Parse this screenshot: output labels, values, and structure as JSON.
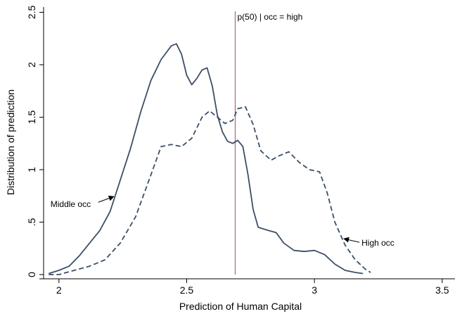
{
  "chart_data": {
    "type": "line",
    "xlabel": "Prediction of Human Capital",
    "ylabel": "Distribution of prediction",
    "xlim": [
      1.94,
      3.55
    ],
    "ylim": [
      0,
      2.55
    ],
    "xticks": [
      2,
      2.5,
      3,
      3.5
    ],
    "xtick_labels": [
      "2",
      "2.5",
      "3",
      "3.5"
    ],
    "yticks": [
      0,
      0.5,
      1,
      1.5,
      2,
      2.5
    ],
    "ytick_labels": [
      "0",
      ".5",
      "1",
      "1.5",
      "2",
      "2.5"
    ],
    "grid": false,
    "legend": "none",
    "series": [
      {
        "name": "Middle occ",
        "style": "solid",
        "color": "#3b4f66",
        "points": [
          [
            1.96,
            0.01
          ],
          [
            2.0,
            0.04
          ],
          [
            2.04,
            0.08
          ],
          [
            2.08,
            0.18
          ],
          [
            2.12,
            0.3
          ],
          [
            2.16,
            0.42
          ],
          [
            2.2,
            0.6
          ],
          [
            2.24,
            0.9
          ],
          [
            2.28,
            1.2
          ],
          [
            2.32,
            1.55
          ],
          [
            2.36,
            1.85
          ],
          [
            2.4,
            2.05
          ],
          [
            2.44,
            2.18
          ],
          [
            2.46,
            2.2
          ],
          [
            2.48,
            2.1
          ],
          [
            2.5,
            1.9
          ],
          [
            2.52,
            1.81
          ],
          [
            2.54,
            1.87
          ],
          [
            2.56,
            1.95
          ],
          [
            2.58,
            1.97
          ],
          [
            2.6,
            1.8
          ],
          [
            2.62,
            1.52
          ],
          [
            2.64,
            1.36
          ],
          [
            2.66,
            1.27
          ],
          [
            2.68,
            1.25
          ],
          [
            2.7,
            1.28
          ],
          [
            2.72,
            1.22
          ],
          [
            2.74,
            0.95
          ],
          [
            2.76,
            0.62
          ],
          [
            2.78,
            0.45
          ],
          [
            2.82,
            0.42
          ],
          [
            2.85,
            0.4
          ],
          [
            2.88,
            0.3
          ],
          [
            2.92,
            0.23
          ],
          [
            2.96,
            0.22
          ],
          [
            3.0,
            0.23
          ],
          [
            3.04,
            0.19
          ],
          [
            3.08,
            0.1
          ],
          [
            3.12,
            0.04
          ],
          [
            3.16,
            0.02
          ],
          [
            3.19,
            0.01
          ]
        ]
      },
      {
        "name": "High occ",
        "style": "dashed",
        "color": "#3b4f66",
        "points": [
          [
            1.96,
            0.0
          ],
          [
            2.0,
            0.0
          ],
          [
            2.06,
            0.04
          ],
          [
            2.12,
            0.08
          ],
          [
            2.18,
            0.14
          ],
          [
            2.24,
            0.3
          ],
          [
            2.3,
            0.55
          ],
          [
            2.36,
            0.95
          ],
          [
            2.4,
            1.22
          ],
          [
            2.44,
            1.24
          ],
          [
            2.48,
            1.22
          ],
          [
            2.52,
            1.3
          ],
          [
            2.56,
            1.5
          ],
          [
            2.59,
            1.56
          ],
          [
            2.62,
            1.5
          ],
          [
            2.65,
            1.44
          ],
          [
            2.68,
            1.47
          ],
          [
            2.7,
            1.58
          ],
          [
            2.73,
            1.6
          ],
          [
            2.76,
            1.43
          ],
          [
            2.79,
            1.18
          ],
          [
            2.83,
            1.09
          ],
          [
            2.86,
            1.13
          ],
          [
            2.9,
            1.17
          ],
          [
            2.94,
            1.07
          ],
          [
            2.98,
            1.0
          ],
          [
            3.02,
            0.98
          ],
          [
            3.05,
            0.78
          ],
          [
            3.08,
            0.5
          ],
          [
            3.12,
            0.28
          ],
          [
            3.16,
            0.14
          ],
          [
            3.2,
            0.05
          ],
          [
            3.22,
            0.02
          ]
        ]
      }
    ],
    "vline": {
      "x": 2.69,
      "label": "p(50) | occ = high",
      "color": "#b07070"
    },
    "annotations": [
      {
        "text": "Middle occ",
        "series": "Middle occ",
        "at_x": 2.22
      },
      {
        "text": "High occ",
        "series": "High occ",
        "at_x": 3.11
      }
    ]
  }
}
